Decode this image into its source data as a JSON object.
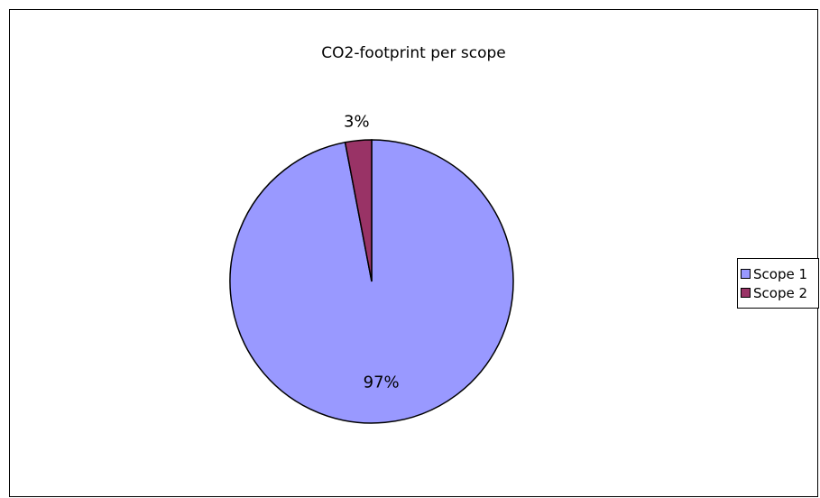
{
  "chart_data": {
    "type": "pie",
    "title": "CO2-footprint per scope",
    "categories": [
      "Scope 1",
      "Scope 2"
    ],
    "values": [
      97,
      3
    ],
    "labels": [
      "97%",
      "3%"
    ],
    "colors": [
      "#9999ff",
      "#993366"
    ],
    "start_angle_deg": 0,
    "direction": "clockwise",
    "legend": {
      "position": "right",
      "items": [
        "Scope 1",
        "Scope 2"
      ]
    }
  }
}
